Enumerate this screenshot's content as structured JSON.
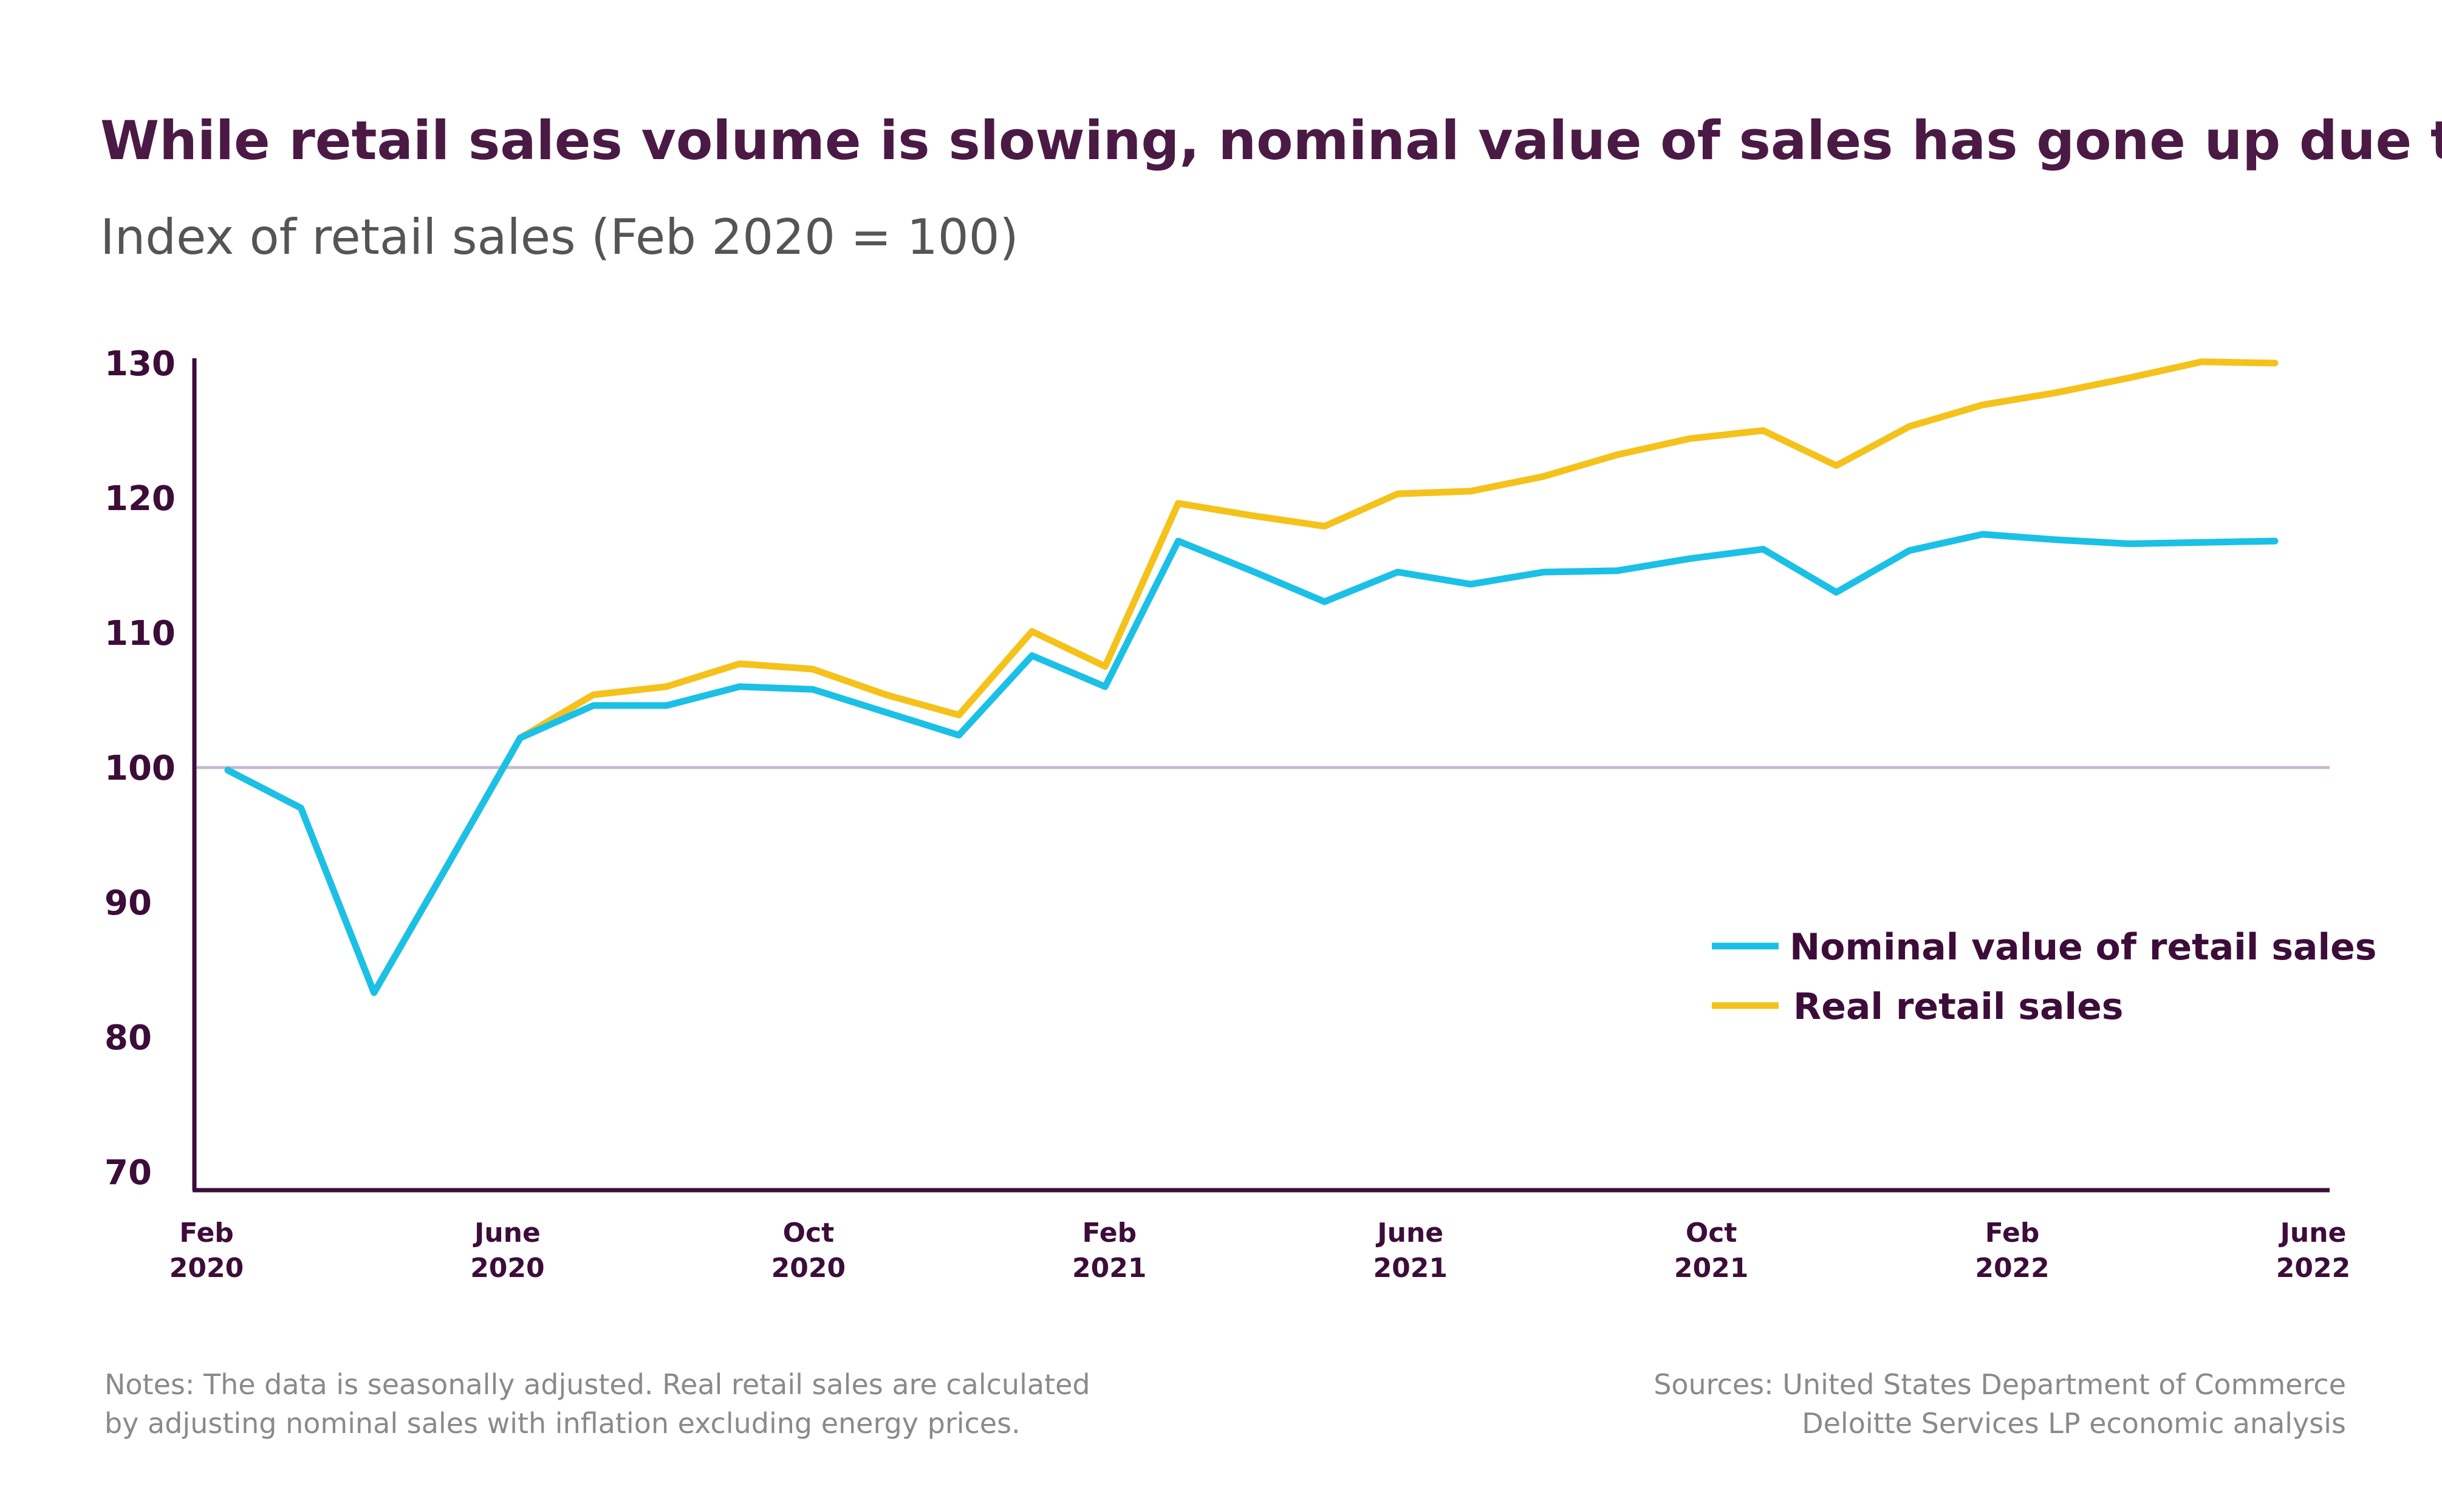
{
  "colors": {
    "title": "#4a1a45",
    "subtitle": "#555555",
    "axis": "#3d0d3a",
    "baseline": "#c7b8cd",
    "nominal": "#1bc0e6",
    "real": "#f4c21a",
    "notes": "#8a8a8a"
  },
  "chart_data": {
    "type": "line",
    "title": "While retail sales volume is slowing, nominal value of sales has gone up due to inflation",
    "subtitle": "Index of retail sales (Feb 2020 = 100)",
    "xlabel": "",
    "ylabel": "",
    "ylim": [
      70,
      130
    ],
    "yticks": [
      "70",
      "80",
      "90",
      "100",
      "110",
      "120",
      "130"
    ],
    "reference_line": 100,
    "x": [
      "2020-02",
      "2020-03",
      "2020-04",
      "2020-05",
      "2020-06",
      "2020-07",
      "2020-08",
      "2020-09",
      "2020-10",
      "2020-11",
      "2020-12",
      "2021-01",
      "2021-02",
      "2021-03",
      "2021-04",
      "2021-05",
      "2021-06",
      "2021-07",
      "2021-08",
      "2021-09",
      "2021-10",
      "2021-11",
      "2021-12",
      "2022-01",
      "2022-02",
      "2022-03",
      "2022-04",
      "2022-05",
      "2022-06"
    ],
    "xtick_labels": [
      {
        "month": "Feb",
        "year": "2020"
      },
      {
        "month": "June",
        "year": "2020"
      },
      {
        "month": "Oct",
        "year": "2020"
      },
      {
        "month": "Feb",
        "year": "2021"
      },
      {
        "month": "June",
        "year": "2021"
      },
      {
        "month": "Oct",
        "year": "2021"
      },
      {
        "month": "Feb",
        "year": "2022"
      },
      {
        "month": "June",
        "year": "2022"
      }
    ],
    "series": [
      {
        "name": "Nominal value of retail sales",
        "color": "#1bc0e6",
        "values": [
          99.8,
          97.0,
          83.3,
          92.7,
          102.2,
          104.6,
          104.6,
          106.0,
          105.8,
          104.1,
          102.4,
          108.3,
          106.0,
          116.8,
          114.6,
          112.3,
          114.5,
          113.6,
          114.5,
          114.6,
          115.5,
          116.2,
          113.0,
          116.1,
          117.3,
          116.9,
          116.6,
          116.7,
          116.8
        ]
      },
      {
        "name": "Real retail sales",
        "color": "#f4c21a",
        "values": [
          99.8,
          97.0,
          83.3,
          92.7,
          102.2,
          105.4,
          106.0,
          107.7,
          107.3,
          105.4,
          103.9,
          110.1,
          107.5,
          119.6,
          118.7,
          117.9,
          120.3,
          120.5,
          121.6,
          123.2,
          124.4,
          125.0,
          122.4,
          125.3,
          126.9,
          127.8,
          128.9,
          130.1,
          130.0
        ]
      }
    ],
    "legend_position": "lower-right"
  },
  "notes": {
    "line1": "Notes: The data is seasonally adjusted. Real retail sales are calculated",
    "line2": "by adjusting nominal sales with inflation excluding energy prices."
  },
  "sources": {
    "line1": "Sources: United States Department of Commerce",
    "line2": "Deloitte Services LP economic analysis"
  }
}
